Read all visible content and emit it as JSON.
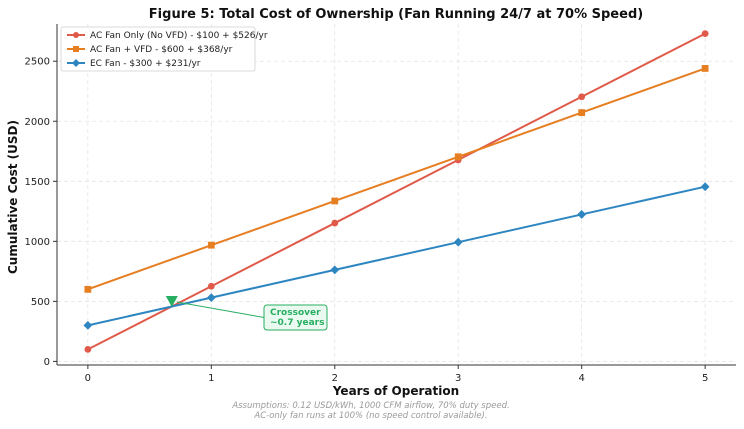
{
  "chart_data": {
    "type": "line",
    "title": "Figure 5: Total Cost of Ownership (Fan Running 24/7 at 70% Speed)",
    "xlabel": "Years of Operation",
    "ylabel": "Cumulative Cost (USD)",
    "x": [
      0,
      1,
      2,
      3,
      4,
      5
    ],
    "xlim": [
      -0.25,
      5.25
    ],
    "ylim": [
      -30,
      2810
    ],
    "xticks": [
      0,
      1,
      2,
      3,
      4,
      5
    ],
    "yticks": [
      0,
      500,
      1000,
      1500,
      2000,
      2500
    ],
    "grid": true,
    "legend_position": "top-left",
    "series": [
      {
        "name": "AC Fan Only (No VFD) - $100 + $526/yr",
        "color": "#e05a4a",
        "marker": "circle",
        "values": [
          100,
          626,
          1152,
          1678,
          2204,
          2730
        ]
      },
      {
        "name": "AC Fan + VFD - $600 + $368/yr",
        "color": "#e67e22",
        "marker": "square",
        "values": [
          600,
          968,
          1336,
          1704,
          2072,
          2440
        ]
      },
      {
        "name": "EC Fan - $300 + $231/yr",
        "color": "#2e86c1",
        "marker": "diamond",
        "values": [
          300,
          531,
          762,
          993,
          1224,
          1455
        ]
      }
    ],
    "annotations": [
      {
        "lines": [
          "Crossover",
          "~0.7 years"
        ],
        "x": 0.68,
        "y": 470,
        "color": "#27ae60"
      }
    ],
    "footnote": [
      "Assumptions: 0.12 USD/kWh, 1000 CFM airflow, 70% duty speed.",
      "AC-only fan runs at 100% (no speed control available)."
    ]
  }
}
